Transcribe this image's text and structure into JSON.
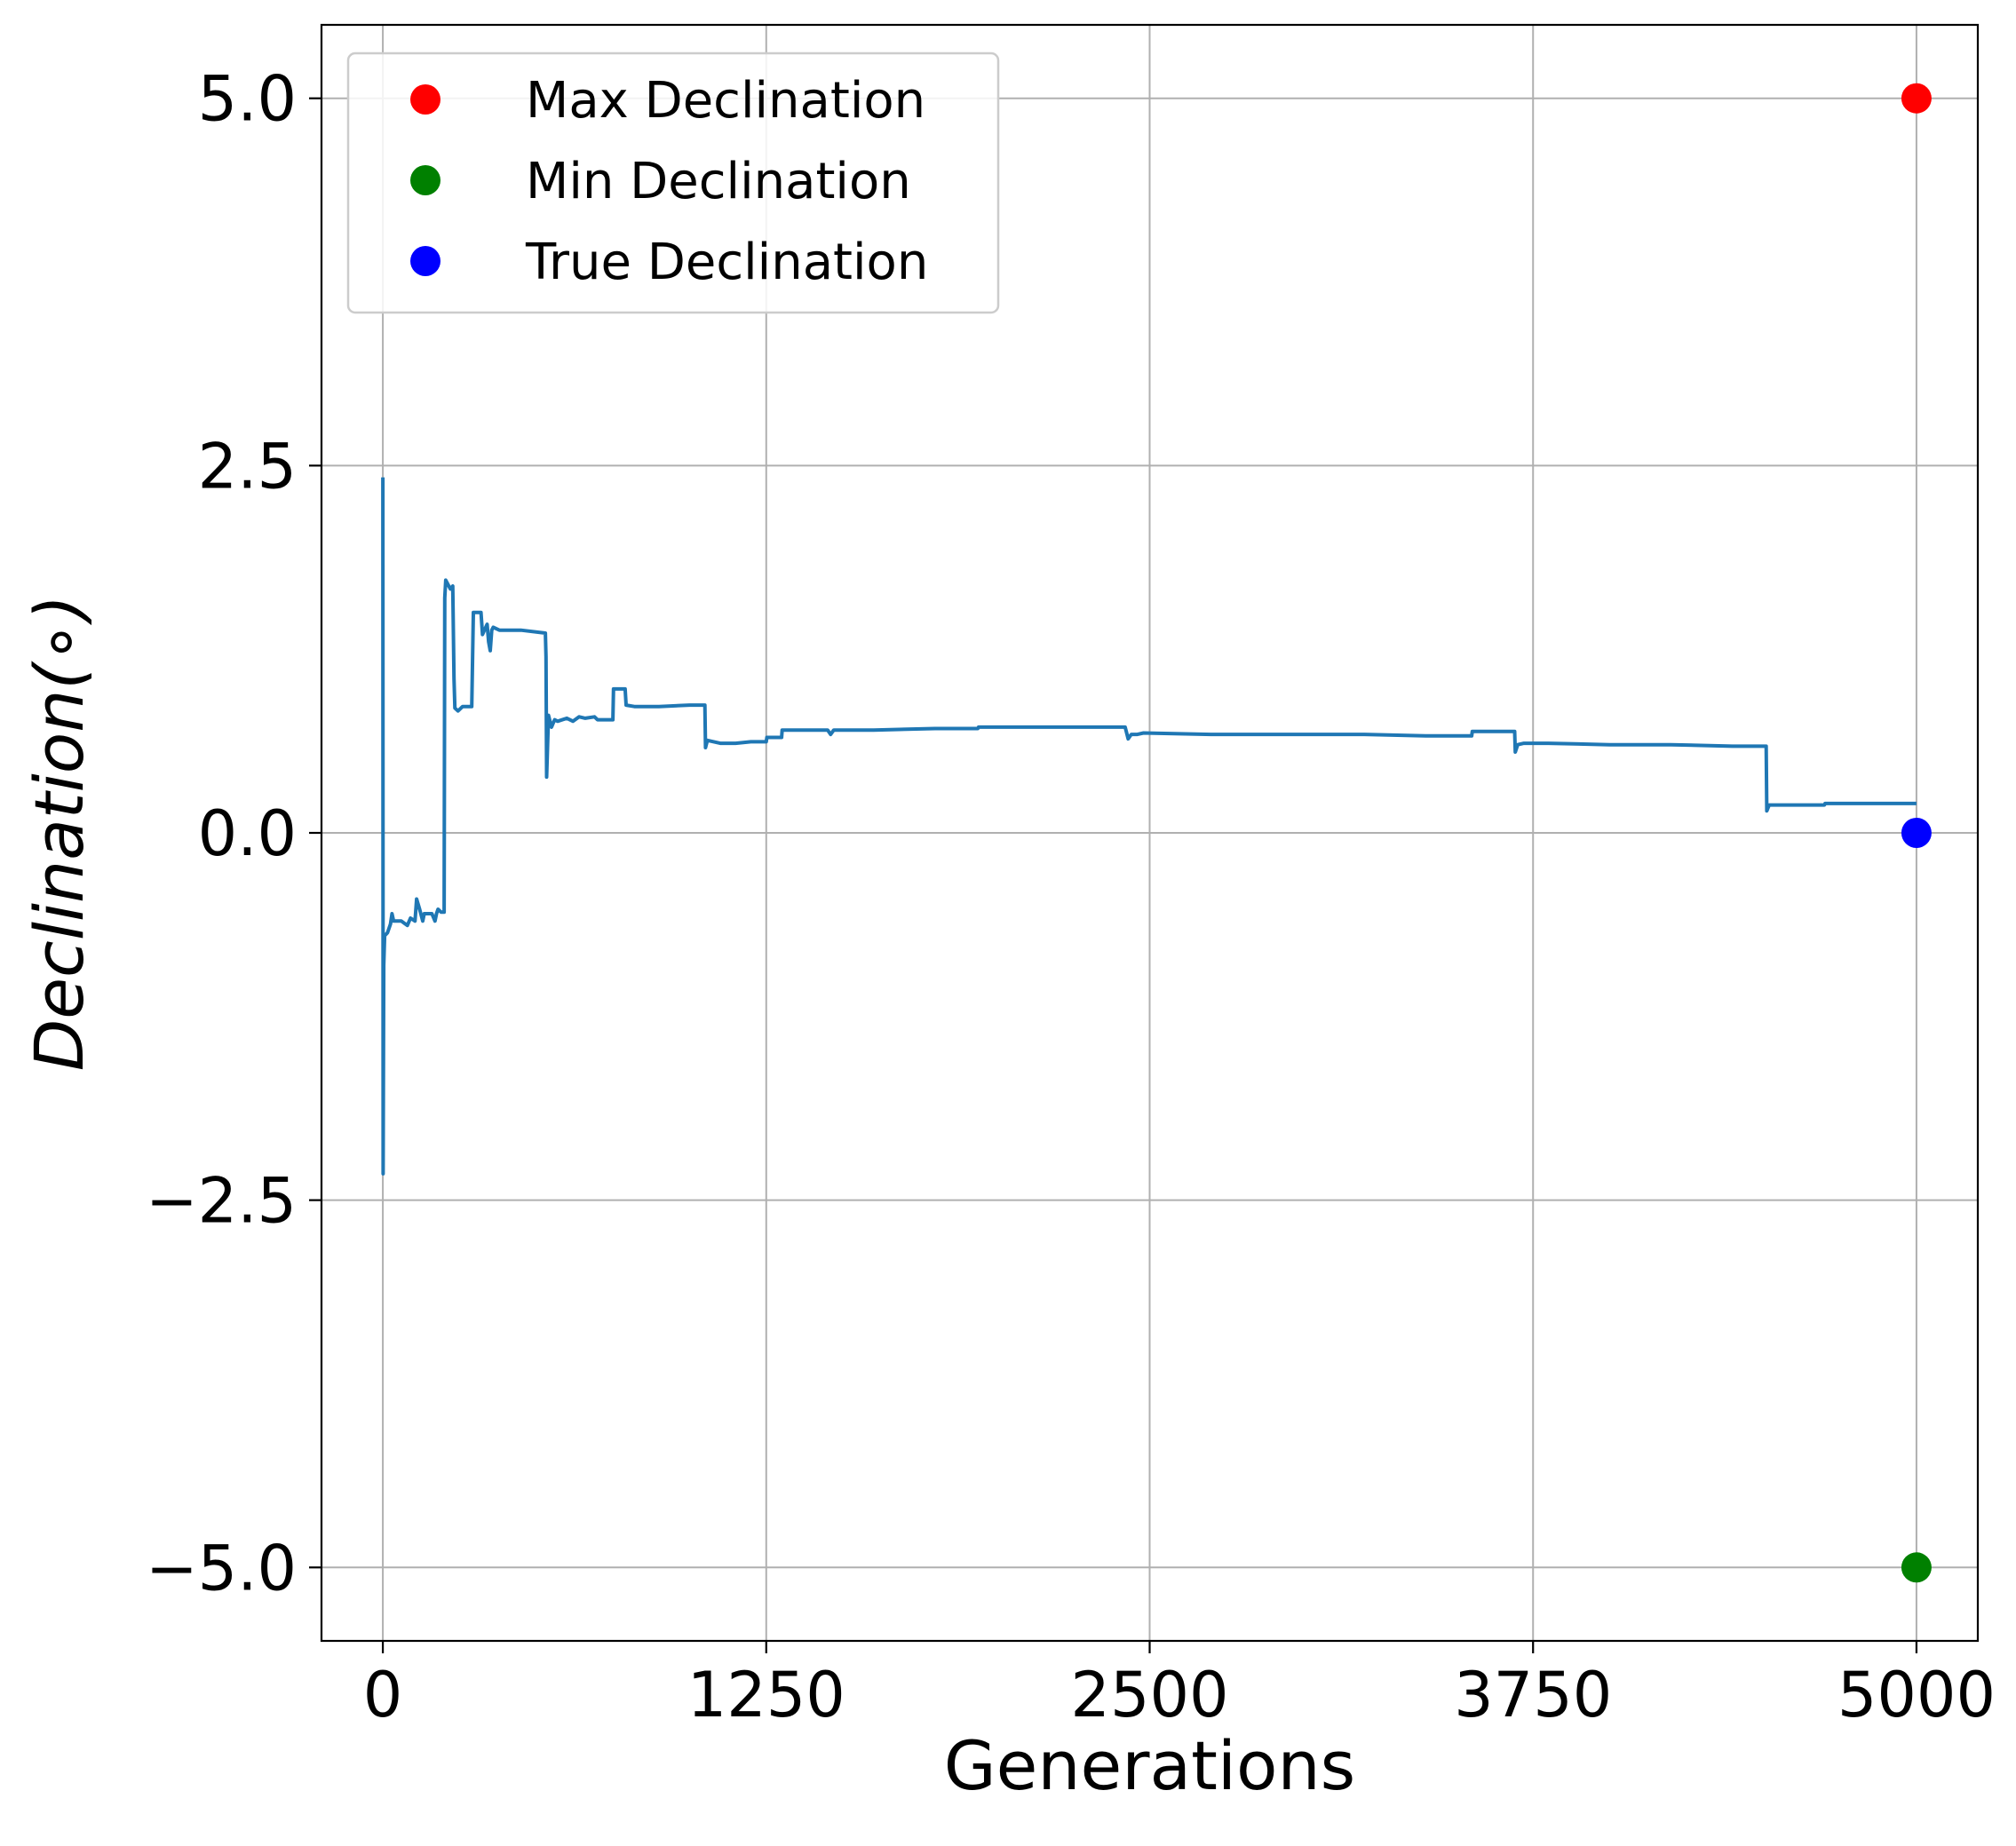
{
  "chart_data": {
    "type": "line",
    "title": "",
    "xlabel": "Generations",
    "ylabel": "Declination(∘)",
    "xlim": [
      -200,
      5200
    ],
    "ylim": [
      -5.5,
      5.5
    ],
    "xticks": [
      0,
      1250,
      2500,
      3750,
      5000
    ],
    "xtick_labels": [
      "0",
      "1250",
      "2500",
      "3750",
      "5000"
    ],
    "yticks": [
      5.0,
      2.5,
      0.0,
      -2.5,
      -5.0
    ],
    "ytick_labels": [
      "5.0",
      "2.5",
      "0.0",
      "−2.5",
      "−5.0"
    ],
    "grid": true,
    "legend_position": "upper left",
    "series": [
      {
        "kind": "line",
        "color": "#1f77b4",
        "points": [
          [
            0,
            2.42
          ],
          [
            1,
            -2.32
          ],
          [
            3,
            -0.9
          ],
          [
            6,
            -0.7
          ],
          [
            15,
            -0.68
          ],
          [
            25,
            -0.62
          ],
          [
            30,
            -0.55
          ],
          [
            35,
            -0.6
          ],
          [
            60,
            -0.6
          ],
          [
            80,
            -0.63
          ],
          [
            90,
            -0.58
          ],
          [
            105,
            -0.6
          ],
          [
            110,
            -0.45
          ],
          [
            120,
            -0.52
          ],
          [
            130,
            -0.6
          ],
          [
            135,
            -0.55
          ],
          [
            160,
            -0.55
          ],
          [
            170,
            -0.6
          ],
          [
            175,
            -0.55
          ],
          [
            180,
            -0.52
          ],
          [
            190,
            -0.54
          ],
          [
            200,
            -0.54
          ],
          [
            202,
            1.6
          ],
          [
            205,
            1.72
          ],
          [
            210,
            1.7
          ],
          [
            220,
            1.66
          ],
          [
            228,
            1.68
          ],
          [
            232,
            1.05
          ],
          [
            235,
            0.85
          ],
          [
            245,
            0.83
          ],
          [
            260,
            0.86
          ],
          [
            290,
            0.86
          ],
          [
            295,
            1.5
          ],
          [
            320,
            1.5
          ],
          [
            325,
            1.35
          ],
          [
            340,
            1.42
          ],
          [
            345,
            1.3
          ],
          [
            350,
            1.24
          ],
          [
            355,
            1.38
          ],
          [
            360,
            1.4
          ],
          [
            380,
            1.38
          ],
          [
            420,
            1.38
          ],
          [
            450,
            1.38
          ],
          [
            530,
            1.36
          ],
          [
            532,
            1.2
          ],
          [
            534,
            0.38
          ],
          [
            540,
            0.8
          ],
          [
            550,
            0.72
          ],
          [
            560,
            0.77
          ],
          [
            570,
            0.76
          ],
          [
            600,
            0.78
          ],
          [
            620,
            0.76
          ],
          [
            640,
            0.79
          ],
          [
            660,
            0.78
          ],
          [
            690,
            0.79
          ],
          [
            700,
            0.77
          ],
          [
            750,
            0.77
          ],
          [
            752,
            0.98
          ],
          [
            790,
            0.98
          ],
          [
            793,
            0.87
          ],
          [
            820,
            0.86
          ],
          [
            900,
            0.86
          ],
          [
            1000,
            0.87
          ],
          [
            1050,
            0.87
          ],
          [
            1052,
            0.58
          ],
          [
            1058,
            0.63
          ],
          [
            1100,
            0.61
          ],
          [
            1150,
            0.61
          ],
          [
            1200,
            0.62
          ],
          [
            1250,
            0.62
          ],
          [
            1252,
            0.65
          ],
          [
            1300,
            0.65
          ],
          [
            1302,
            0.7
          ],
          [
            1400,
            0.7
          ],
          [
            1450,
            0.7
          ],
          [
            1460,
            0.67
          ],
          [
            1470,
            0.7
          ],
          [
            1600,
            0.7
          ],
          [
            1800,
            0.71
          ],
          [
            1940,
            0.71
          ],
          [
            1942,
            0.72
          ],
          [
            2100,
            0.72
          ],
          [
            2200,
            0.72
          ],
          [
            2420,
            0.72
          ],
          [
            2430,
            0.64
          ],
          [
            2440,
            0.67
          ],
          [
            2460,
            0.67
          ],
          [
            2480,
            0.68
          ],
          [
            2700,
            0.67
          ],
          [
            3000,
            0.67
          ],
          [
            3200,
            0.67
          ],
          [
            3400,
            0.66
          ],
          [
            3550,
            0.66
          ],
          [
            3552,
            0.69
          ],
          [
            3690,
            0.69
          ],
          [
            3692,
            0.55
          ],
          [
            3700,
            0.6
          ],
          [
            3720,
            0.61
          ],
          [
            3800,
            0.61
          ],
          [
            4000,
            0.6
          ],
          [
            4200,
            0.6
          ],
          [
            4400,
            0.59
          ],
          [
            4510,
            0.59
          ],
          [
            4512,
            0.15
          ],
          [
            4520,
            0.19
          ],
          [
            4700,
            0.19
          ],
          [
            4702,
            0.2
          ],
          [
            4800,
            0.2
          ],
          [
            5000,
            0.2
          ]
        ]
      },
      {
        "name": "Max Declination",
        "kind": "marker",
        "color": "#ff0000",
        "x": 5000,
        "y": 5.0
      },
      {
        "name": "Min Declination",
        "kind": "marker",
        "color": "#008000",
        "x": 5000,
        "y": -5.0
      },
      {
        "name": "True Declination",
        "kind": "marker",
        "color": "#0000ff",
        "x": 5000,
        "y": 0.0
      }
    ]
  }
}
